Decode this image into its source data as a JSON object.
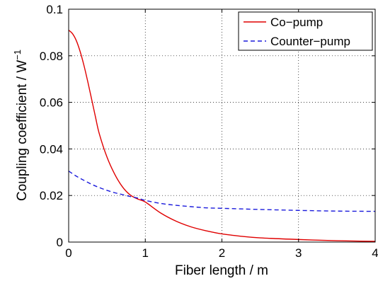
{
  "chart_data": {
    "type": "line",
    "title": "",
    "xlabel": "Fiber length / m",
    "ylabel_text": "Coupling coefficient / W",
    "ylabel_exponent": "−1",
    "xlim": [
      0,
      4
    ],
    "ylim": [
      0,
      0.1
    ],
    "x_ticks": [
      0,
      1,
      2,
      3,
      4
    ],
    "x_tick_labels": [
      "0",
      "1",
      "2",
      "3",
      "4"
    ],
    "y_ticks": [
      0,
      0.02,
      0.04,
      0.06,
      0.08,
      0.1
    ],
    "y_tick_labels": [
      "0",
      "0.02",
      "0.04",
      "0.06",
      "0.08",
      "0.1"
    ],
    "grid": true,
    "legend_position": "top-right",
    "series": [
      {
        "name": "Co−pump",
        "color": "#e00000",
        "line_style": "solid",
        "x": [
          0,
          0.05,
          0.1,
          0.15,
          0.2,
          0.25,
          0.3,
          0.35,
          0.4,
          0.5,
          0.6,
          0.7,
          0.8,
          0.9,
          1.0,
          1.2,
          1.4,
          1.6,
          1.8,
          2.0,
          2.25,
          2.5,
          3.0,
          3.5,
          4.0
        ],
        "y": [
          0.091,
          0.0895,
          0.0865,
          0.0818,
          0.0758,
          0.0688,
          0.0613,
          0.0537,
          0.0465,
          0.0365,
          0.0292,
          0.0238,
          0.0203,
          0.0185,
          0.0172,
          0.0125,
          0.009,
          0.0065,
          0.0048,
          0.0035,
          0.0025,
          0.0018,
          0.0011,
          0.0006,
          0.0003
        ]
      },
      {
        "name": "Counter−pump",
        "color": "#1a1adc",
        "line_style": "dashed",
        "x": [
          0,
          0.1,
          0.2,
          0.3,
          0.4,
          0.5,
          0.6,
          0.7,
          0.8,
          0.9,
          1.0,
          1.2,
          1.4,
          1.6,
          1.8,
          2.0,
          2.5,
          3.0,
          3.5,
          4.0
        ],
        "y": [
          0.0305,
          0.0283,
          0.0265,
          0.0248,
          0.0234,
          0.0222,
          0.0212,
          0.0204,
          0.0196,
          0.0189,
          0.0179,
          0.0166,
          0.0158,
          0.0152,
          0.0147,
          0.0145,
          0.014,
          0.0136,
          0.0133,
          0.0132
        ]
      }
    ]
  }
}
